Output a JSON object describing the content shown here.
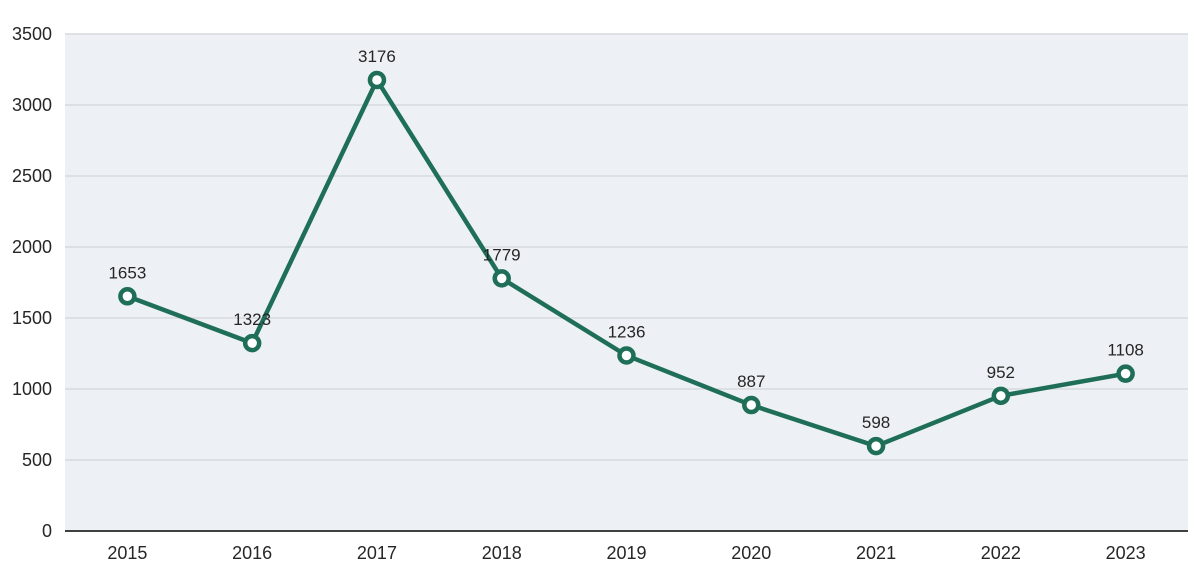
{
  "chart_data": {
    "type": "line",
    "title": "",
    "xlabel": "",
    "ylabel": "",
    "categories": [
      "2015",
      "2016",
      "2017",
      "2018",
      "2019",
      "2020",
      "2021",
      "2022",
      "2023"
    ],
    "series": [
      {
        "name": "values",
        "values": [
          1653,
          1323,
          3176,
          1779,
          1236,
          887,
          598,
          952,
          1108
        ]
      }
    ],
    "data_labels": [
      "1653",
      "1323",
      "3176",
      "1779",
      "1236",
      "887",
      "598",
      "952",
      "1108"
    ],
    "ylim": [
      0,
      3500
    ],
    "ytick_step": 500,
    "ytick_labels": [
      "0",
      "500",
      "1000",
      "1500",
      "2000",
      "2500",
      "3000",
      "3500"
    ],
    "grid": true,
    "legend_position": "none",
    "colors": {
      "line": "#1f6e58",
      "marker_fill": "#ffffff",
      "marker_stroke": "#1f6e58",
      "plot_background": "#edf1f5",
      "gridline": "#d6dade",
      "axis_line": "#404040",
      "text": "#262626",
      "page_background": "#ffffff"
    }
  }
}
